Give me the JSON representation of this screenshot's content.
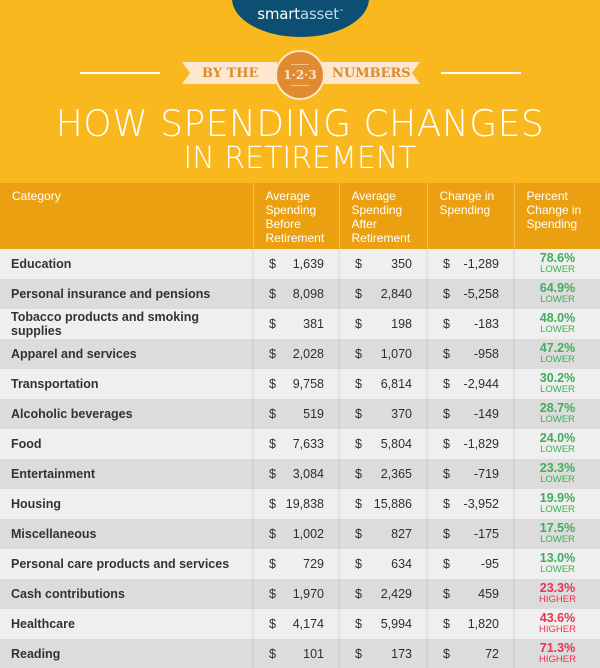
{
  "header": {
    "logo": {
      "bold": "smart",
      "light": "asset",
      "tm": "™"
    },
    "banner_left": "BY THE",
    "banner_medal": "1·2·3",
    "banner_right": "NUMBERS",
    "title_line1": "HOW SPENDING CHANGES",
    "title_line2": "IN RETIREMENT"
  },
  "colors": {
    "background": "#f9b81e",
    "table_header": "#eba012",
    "logo_oval": "#0d4f72",
    "lower": "#3fae5a",
    "higher": "#e8344d"
  },
  "table": {
    "columns": [
      "Category",
      "Average Spending Before Retirement",
      "Average Spending After Retirement",
      "Change in Spending",
      "Percent Change in Spending"
    ],
    "currency_symbol": "$",
    "rows": [
      {
        "category": "Education",
        "before": "1,639",
        "after": "350",
        "change": "-1,289",
        "pct": "78.6%",
        "dir": "LOWER"
      },
      {
        "category": "Personal insurance and pensions",
        "before": "8,098",
        "after": "2,840",
        "change": "-5,258",
        "pct": "64.9%",
        "dir": "LOWER"
      },
      {
        "category": "Tobacco products and smoking supplies",
        "before": "381",
        "after": "198",
        "change": "-183",
        "pct": "48.0%",
        "dir": "LOWER"
      },
      {
        "category": "Apparel and services",
        "before": "2,028",
        "after": "1,070",
        "change": "-958",
        "pct": "47.2%",
        "dir": "LOWER"
      },
      {
        "category": "Transportation",
        "before": "9,758",
        "after": "6,814",
        "change": "-2,944",
        "pct": "30.2%",
        "dir": "LOWER"
      },
      {
        "category": "Alcoholic beverages",
        "before": "519",
        "after": "370",
        "change": "-149",
        "pct": "28.7%",
        "dir": "LOWER"
      },
      {
        "category": "Food",
        "before": "7,633",
        "after": "5,804",
        "change": "-1,829",
        "pct": "24.0%",
        "dir": "LOWER"
      },
      {
        "category": "Entertainment",
        "before": "3,084",
        "after": "2,365",
        "change": "-719",
        "pct": "23.3%",
        "dir": "LOWER"
      },
      {
        "category": "Housing",
        "before": "19,838",
        "after": "15,886",
        "change": "-3,952",
        "pct": "19.9%",
        "dir": "LOWER"
      },
      {
        "category": "Miscellaneous",
        "before": "1,002",
        "after": "827",
        "change": "-175",
        "pct": "17.5%",
        "dir": "LOWER"
      },
      {
        "category": "Personal care products and services",
        "before": "729",
        "after": "634",
        "change": "-95",
        "pct": "13.0%",
        "dir": "LOWER"
      },
      {
        "category": "Cash contributions",
        "before": "1,970",
        "after": "2,429",
        "change": "459",
        "pct": "23.3%",
        "dir": "HIGHER"
      },
      {
        "category": "Healthcare",
        "before": "4,174",
        "after": "5,994",
        "change": "1,820",
        "pct": "43.6%",
        "dir": "HIGHER"
      },
      {
        "category": "Reading",
        "before": "101",
        "after": "173",
        "change": "72",
        "pct": "71.3%",
        "dir": "HIGHER"
      }
    ]
  }
}
